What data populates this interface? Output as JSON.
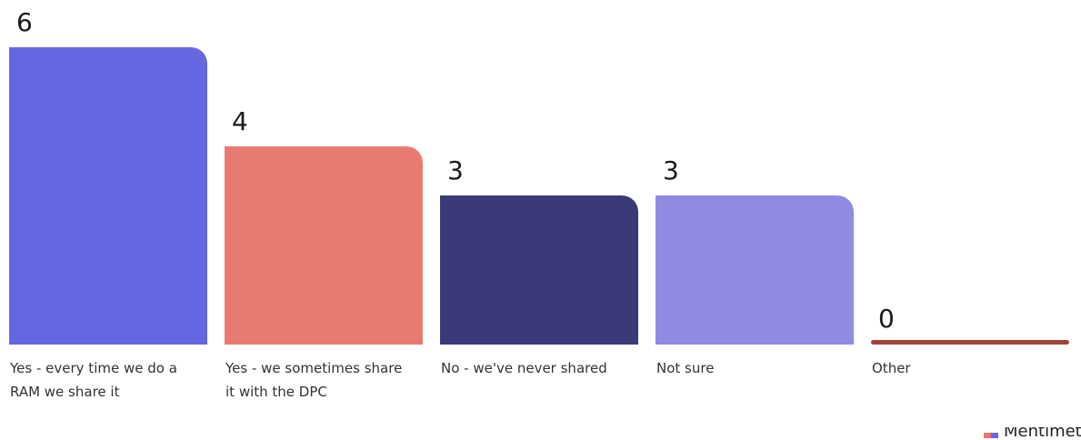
{
  "chart_data": {
    "type": "bar",
    "categories": [
      "Yes - every time we do a RAM we share it",
      "Yes - we sometimes share it with the DPC",
      "No - we've never shared",
      "Not sure",
      "Other"
    ],
    "category_lines": [
      [
        "Yes - every time we do a",
        "RAM we share it"
      ],
      [
        "Yes - we sometimes share",
        "it with the DPC"
      ],
      [
        "No - we've never shared"
      ],
      [
        "Not sure"
      ],
      [
        "Other"
      ]
    ],
    "values": [
      6,
      4,
      3,
      3,
      0
    ],
    "value_labels": [
      "6",
      "4",
      "3",
      "3",
      "0"
    ],
    "colors": [
      "#6667e0",
      "#e77b72",
      "#3a3a78",
      "#918ae3",
      "#a0443a"
    ],
    "ylim": [
      0,
      6
    ]
  },
  "brand": {
    "text": "Mentimeter"
  }
}
